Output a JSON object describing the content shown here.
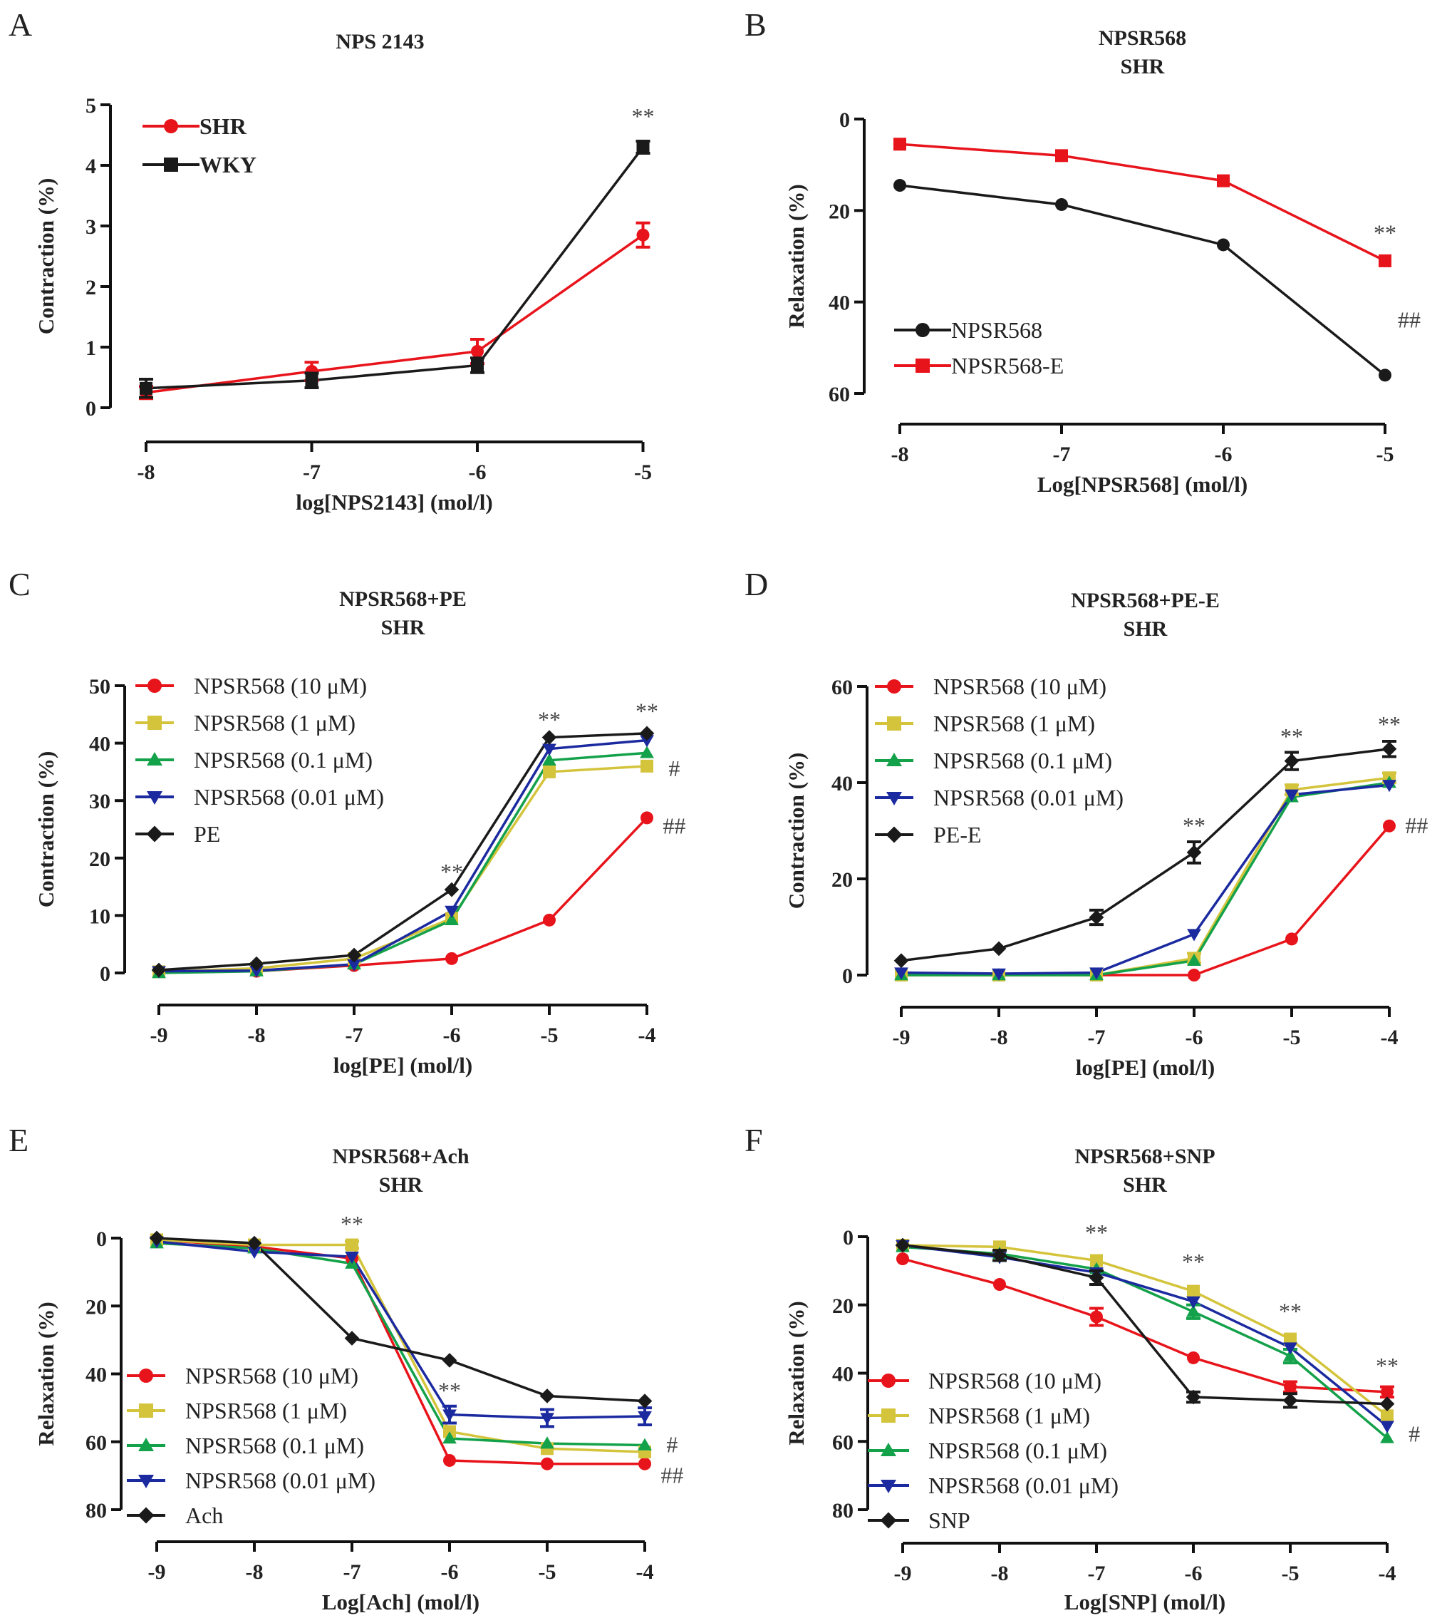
{
  "chart_data": [
    {
      "id": "A",
      "panel_label": "A",
      "type": "line",
      "title": [
        "NPS 2143"
      ],
      "xlabel": "log[NPS2143] (mol/l)",
      "ylabel": "Contraction (%)",
      "x": [
        -8,
        -7,
        -6,
        -5
      ],
      "xticks": [
        "-8",
        "-7",
        "-6",
        "-5"
      ],
      "ylim": [
        0,
        5
      ],
      "yticks": [
        0,
        1,
        2,
        3,
        4,
        5
      ],
      "y_inverted": false,
      "legend_position": "top-left",
      "legend_bold": true,
      "series": [
        {
          "name": "SHR",
          "color": "#e8141b",
          "marker": "circle",
          "values": [
            0.25,
            0.6,
            0.93,
            2.85
          ],
          "errors": [
            0.1,
            0.15,
            0.2,
            0.2
          ]
        },
        {
          "name": "WKY",
          "color": "#1a1a1a",
          "marker": "square",
          "values": [
            0.32,
            0.45,
            0.7,
            4.3
          ],
          "errors": [
            0.15,
            0.12,
            0.12,
            0.1
          ]
        }
      ],
      "annotations": [
        {
          "text": "**",
          "x": -5,
          "y": 4.8
        }
      ]
    },
    {
      "id": "B",
      "panel_label": "B",
      "type": "line",
      "title": [
        "NPSR568",
        "SHR"
      ],
      "xlabel": "Log[NPSR568] (mol/l)",
      "ylabel": "Relaxation (%)",
      "x": [
        -8,
        -7,
        -6,
        -5
      ],
      "xticks": [
        "-8",
        "-7",
        "-6",
        "-5"
      ],
      "ylim": [
        0,
        60
      ],
      "yticks": [
        0,
        20,
        40,
        60
      ],
      "y_inverted": true,
      "legend_position": "bottom-left",
      "legend_bold": false,
      "series": [
        {
          "name": "NPSR568",
          "color": "#1a1a1a",
          "marker": "circle",
          "values": [
            14.5,
            18.7,
            27.5,
            56
          ],
          "errors": [
            0,
            0,
            0,
            0
          ]
        },
        {
          "name": "NPSR568-E",
          "color": "#e8141b",
          "marker": "square",
          "values": [
            5.5,
            8,
            13.5,
            31
          ],
          "errors": [
            0,
            0,
            0,
            0
          ]
        }
      ],
      "annotations": [
        {
          "text": "**",
          "x": -5,
          "y": 25
        },
        {
          "text": "##",
          "x": -4.85,
          "y": 44
        }
      ]
    },
    {
      "id": "C",
      "panel_label": "C",
      "type": "line",
      "title": [
        "NPSR568+PE",
        "SHR"
      ],
      "xlabel": "log[PE] (mol/l)",
      "ylabel": "Contraction (%)",
      "x": [
        -9,
        -8,
        -7,
        -6,
        -5,
        -4
      ],
      "xticks": [
        "-9",
        "-8",
        "-7",
        "-6",
        "-5",
        "-4"
      ],
      "ylim": [
        0,
        50
      ],
      "yticks": [
        0,
        10,
        20,
        30,
        40,
        50
      ],
      "y_inverted": false,
      "legend_position": "top-left",
      "legend_bold": false,
      "series": [
        {
          "name": "NPSR568  (10 μM)",
          "color": "#e8141b",
          "marker": "circle",
          "values": [
            0.3,
            0.3,
            1.3,
            2.5,
            9.2,
            27
          ],
          "errors": [
            0,
            0,
            0,
            0,
            0,
            0
          ]
        },
        {
          "name": "NPSR568  (1 μM)",
          "color": "#d4c43c",
          "marker": "square",
          "values": [
            0.2,
            0.8,
            2.5,
            9.5,
            35,
            36
          ],
          "errors": [
            0,
            0,
            0,
            0,
            0,
            0
          ]
        },
        {
          "name": "NPSR568  (0.1 μM)",
          "color": "#13a14a",
          "marker": "triangle-up",
          "values": [
            0,
            0.3,
            1.5,
            9.2,
            37,
            38.3
          ],
          "errors": [
            0,
            0,
            0,
            0,
            0,
            0
          ]
        },
        {
          "name": "NPSR568  (0.01 μM)",
          "color": "#1c2aa0",
          "marker": "triangle-down",
          "values": [
            0.3,
            0.4,
            1.5,
            10.8,
            39,
            40.5
          ],
          "errors": [
            0,
            0,
            0,
            0,
            0,
            0
          ]
        },
        {
          "name": "PE",
          "color": "#1a1a1a",
          "marker": "diamond",
          "values": [
            0.5,
            1.6,
            3.1,
            14.5,
            41,
            41.7
          ],
          "errors": [
            0,
            0,
            0,
            0,
            0,
            0
          ]
        }
      ],
      "annotations": [
        {
          "text": "**",
          "x": -6,
          "y": 17.5
        },
        {
          "text": "**",
          "x": -5,
          "y": 44
        },
        {
          "text": "**",
          "x": -4,
          "y": 45.5
        },
        {
          "text": "#",
          "x": -3.72,
          "y": 35.5
        },
        {
          "text": "##",
          "x": -3.72,
          "y": 25.5
        }
      ]
    },
    {
      "id": "D",
      "panel_label": "D",
      "type": "line",
      "title": [
        "NPSR568+PE-E",
        "SHR"
      ],
      "xlabel": "log[PE] (mol/l)",
      "ylabel": "Contraction (%)",
      "x": [
        -9,
        -8,
        -7,
        -6,
        -5,
        -4
      ],
      "xticks": [
        "-9",
        "-8",
        "-7",
        "-6",
        "-5",
        "-4"
      ],
      "ylim": [
        0,
        60
      ],
      "yticks": [
        0,
        20,
        40,
        60
      ],
      "y_inverted": false,
      "legend_position": "top-left",
      "legend_bold": false,
      "series": [
        {
          "name": "NPSR568 (10 μM)",
          "color": "#e8141b",
          "marker": "circle",
          "values": [
            0,
            0,
            0,
            0,
            7.5,
            31
          ],
          "errors": [
            0,
            0,
            0,
            0,
            0,
            0
          ]
        },
        {
          "name": "NPSR568 (1 μM)",
          "color": "#d4c43c",
          "marker": "square",
          "values": [
            0,
            0,
            0,
            3.5,
            38.5,
            41
          ],
          "errors": [
            0,
            0,
            0,
            1,
            1,
            1
          ]
        },
        {
          "name": "NPSR568 (0.1 μM)",
          "color": "#13a14a",
          "marker": "triangle-up",
          "values": [
            0,
            0,
            0,
            3,
            37,
            40
          ],
          "errors": [
            0,
            0,
            0,
            0,
            0,
            0
          ]
        },
        {
          "name": "NPSR568 (0.01 μM)",
          "color": "#1c2aa0",
          "marker": "triangle-down",
          "values": [
            0.5,
            0.3,
            0.5,
            8.5,
            37.5,
            39.5
          ],
          "errors": [
            0,
            0,
            0,
            0,
            0,
            0
          ]
        },
        {
          "name": "PE-E",
          "color": "#1a1a1a",
          "marker": "diamond",
          "values": [
            3,
            5.5,
            12,
            25.5,
            44.5,
            47
          ],
          "errors": [
            0,
            0,
            1.5,
            2.2,
            1.8,
            1.6
          ]
        }
      ],
      "annotations": [
        {
          "text": "**",
          "x": -6,
          "y": 31
        },
        {
          "text": "**",
          "x": -5,
          "y": 49.5
        },
        {
          "text": "**",
          "x": -4,
          "y": 52
        },
        {
          "text": "##",
          "x": -3.72,
          "y": 31
        }
      ]
    },
    {
      "id": "E",
      "panel_label": "E",
      "type": "line",
      "title": [
        "NPSR568+Ach",
        "SHR"
      ],
      "xlabel": "Log[Ach] (mol/l)",
      "ylabel": "Relaxation (%)",
      "x": [
        -9,
        -8,
        -7,
        -6,
        -5,
        -4
      ],
      "xticks": [
        "-9",
        "-8",
        "-7",
        "-6",
        "-5",
        "-4"
      ],
      "ylim": [
        0,
        80
      ],
      "yticks": [
        0,
        20,
        40,
        60,
        80
      ],
      "y_inverted": true,
      "legend_position": "bottom-left",
      "legend_bold": false,
      "series": [
        {
          "name": "NPSR568 (10 μM)",
          "color": "#e8141b",
          "marker": "circle",
          "values": [
            0.5,
            2.5,
            6,
            65.5,
            66.5,
            66.5
          ],
          "errors": [
            0,
            0,
            0,
            0,
            0,
            0
          ]
        },
        {
          "name": "NPSR568 (1 μM)",
          "color": "#d4c43c",
          "marker": "square",
          "values": [
            0.5,
            2,
            2,
            57,
            62,
            63
          ],
          "errors": [
            0,
            0,
            1,
            0,
            0,
            0
          ]
        },
        {
          "name": "NPSR568 (0.1 μM)",
          "color": "#13a14a",
          "marker": "triangle-up",
          "values": [
            1.5,
            3,
            7.5,
            59,
            60.5,
            61
          ],
          "errors": [
            0,
            0,
            0,
            0,
            0,
            0
          ]
        },
        {
          "name": "NPSR568 (0.01 μM)",
          "color": "#1c2aa0",
          "marker": "triangle-down",
          "values": [
            1,
            4,
            5.5,
            52,
            53,
            52.5
          ],
          "errors": [
            0,
            0,
            0,
            2.5,
            2.5,
            2.5
          ]
        },
        {
          "name": "Ach",
          "color": "#1a1a1a",
          "marker": "diamond",
          "values": [
            0,
            1.5,
            29.5,
            36,
            46.5,
            48
          ],
          "errors": [
            0,
            0,
            0,
            0,
            0,
            0
          ]
        }
      ],
      "annotations": [
        {
          "text": "**",
          "x": -7,
          "y": -4
        },
        {
          "text": "**",
          "x": -6,
          "y": 45
        },
        {
          "text": "#",
          "x": -3.72,
          "y": 61
        },
        {
          "text": "##",
          "x": -3.72,
          "y": 70
        }
      ]
    },
    {
      "id": "F",
      "panel_label": "F",
      "type": "line",
      "title": [
        "NPSR568+SNP",
        "SHR"
      ],
      "xlabel": "Log[SNP] (mol/l)",
      "ylabel": "Relaxation (%)",
      "x": [
        -9,
        -8,
        -7,
        -6,
        -5,
        -4
      ],
      "xticks": [
        "-9",
        "-8",
        "-7",
        "-6",
        "-5",
        "-4"
      ],
      "ylim": [
        0,
        80
      ],
      "yticks": [
        0,
        20,
        40,
        60,
        80
      ],
      "y_inverted": true,
      "legend_position": "bottom-left",
      "legend_bold": false,
      "series": [
        {
          "name": "NPSR568  (10 μM)",
          "color": "#e8141b",
          "marker": "circle",
          "values": [
            6.5,
            14,
            23.5,
            35.5,
            44,
            45.5
          ],
          "errors": [
            0,
            0,
            2.5,
            0,
            1.5,
            1.5
          ]
        },
        {
          "name": "NPSR568  (1 μM)",
          "color": "#d4c43c",
          "marker": "square",
          "values": [
            2.5,
            3,
            7,
            16,
            30,
            52.5
          ],
          "errors": [
            0,
            0,
            0,
            0,
            0,
            0
          ]
        },
        {
          "name": "NPSR568  (0.1 μM)",
          "color": "#13a14a",
          "marker": "triangle-up",
          "values": [
            3,
            5,
            9.5,
            22,
            35,
            59
          ],
          "errors": [
            0,
            0,
            0,
            2,
            2,
            0
          ]
        },
        {
          "name": "NPSR568  (0.01 μM)",
          "color": "#1c2aa0",
          "marker": "triangle-down",
          "values": [
            2.5,
            6,
            10.5,
            19,
            32.5,
            55.5
          ],
          "errors": [
            0,
            0,
            0,
            0,
            0,
            0
          ]
        },
        {
          "name": "SNP",
          "color": "#1a1a1a",
          "marker": "diamond",
          "values": [
            2.5,
            5.5,
            12,
            47,
            48,
            49
          ],
          "errors": [
            0,
            1.5,
            2,
            1.5,
            2,
            0
          ]
        }
      ],
      "annotations": [
        {
          "text": "**",
          "x": -7,
          "y": -1
        },
        {
          "text": "**",
          "x": -6,
          "y": 7.5
        },
        {
          "text": "**",
          "x": -5,
          "y": 22
        },
        {
          "text": "**",
          "x": -4,
          "y": 38
        },
        {
          "text": "#",
          "x": -3.72,
          "y": 58
        }
      ]
    }
  ]
}
